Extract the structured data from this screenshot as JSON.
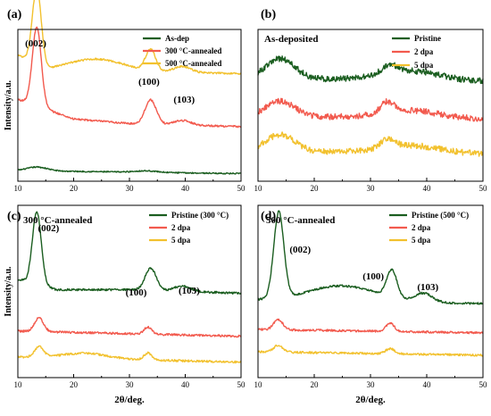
{
  "colors": {
    "green": "#1b5e20",
    "red": "#f25a4e",
    "yellow": "#f2c12e"
  },
  "chart_data": [
    {
      "panel": "(a)",
      "type": "line",
      "annotation": "",
      "xlabel": "",
      "ylabel": "Intensity/a.u.",
      "xlim": [
        10,
        50
      ],
      "xticks": [
        10,
        20,
        30,
        40,
        50
      ],
      "legend_position": "top-right",
      "peak_labels": [
        {
          "text": "(002)",
          "x": 13.2
        },
        {
          "text": "(100)",
          "x": 33.5
        },
        {
          "text": "(103)",
          "x": 39.8
        }
      ],
      "series": [
        {
          "name": "As-dep",
          "color": "#1b5e20",
          "offset": 0.05,
          "noise": 0.004,
          "baseline": [
            [
              10,
              0.02
            ],
            [
              50,
              0.0
            ]
          ],
          "peaks": [
            [
              13.5,
              0.025,
              1.8
            ],
            [
              33,
              0.01,
              2
            ]
          ]
        },
        {
          "name": "300 °C-annealed",
          "color": "#f25a4e",
          "offset": 0.36,
          "noise": 0.006,
          "baseline": [
            [
              10,
              0.18
            ],
            [
              20,
              0.05
            ],
            [
              30,
              0.02
            ],
            [
              50,
              0.0
            ]
          ],
          "peaks": [
            [
              13.4,
              0.52,
              0.8
            ],
            [
              33.8,
              0.16,
              1.0
            ],
            [
              39.5,
              0.03,
              1.5
            ]
          ]
        },
        {
          "name": "500 °C-annealed",
          "color": "#f2c12e",
          "offset": 0.71,
          "noise": 0.006,
          "baseline": [
            [
              10,
              0.12
            ],
            [
              15,
              0.02
            ],
            [
              50,
              0.0
            ]
          ],
          "peaks": [
            [
              13.4,
              0.5,
              0.8
            ],
            [
              24,
              0.08,
              5
            ],
            [
              33.8,
              0.14,
              0.9
            ],
            [
              39.5,
              0.04,
              1.5
            ]
          ]
        }
      ]
    },
    {
      "panel": "(b)",
      "type": "line",
      "annotation": "As-deposited",
      "xlabel": "",
      "ylabel": "",
      "xlim": [
        10,
        50
      ],
      "xticks": [
        10,
        20,
        30,
        40,
        50
      ],
      "legend_position": "top-right",
      "peak_labels": [],
      "series": [
        {
          "name": "Pristine",
          "color": "#1b5e20",
          "offset": 0.66,
          "noise": 0.02,
          "baseline": [
            [
              10,
              0.02
            ],
            [
              50,
              0.0
            ]
          ],
          "peaks": [
            [
              14,
              0.13,
              2.5
            ],
            [
              33.5,
              0.05,
              1.5
            ],
            [
              37,
              0.06,
              5
            ]
          ]
        },
        {
          "name": "2 dpa",
          "color": "#f25a4e",
          "offset": 0.41,
          "noise": 0.02,
          "baseline": [
            [
              10,
              0.02
            ],
            [
              50,
              0.0
            ]
          ],
          "peaks": [
            [
              14,
              0.1,
              2.5
            ],
            [
              33,
              0.07,
              1.2
            ],
            [
              37,
              0.05,
              5
            ]
          ]
        },
        {
          "name": "5 dpa",
          "color": "#f2c12e",
          "offset": 0.18,
          "noise": 0.02,
          "baseline": [
            [
              10,
              0.02
            ],
            [
              50,
              0.0
            ]
          ],
          "peaks": [
            [
              14,
              0.11,
              2.5
            ],
            [
              33,
              0.06,
              1.2
            ],
            [
              37,
              0.05,
              5
            ]
          ]
        }
      ]
    },
    {
      "panel": "(c)",
      "type": "line",
      "annotation": "300 °C-annealed",
      "xlabel": "2θ/deg.",
      "ylabel": "Intensity/a.u.",
      "xlim": [
        10,
        50
      ],
      "xticks": [
        10,
        20,
        30,
        40,
        50
      ],
      "legend_position": "top-right",
      "peak_labels": [
        {
          "text": "(002)",
          "x": 15.5
        },
        {
          "text": "(100)",
          "x": 31.2
        },
        {
          "text": "(103)",
          "x": 40.7
        }
      ],
      "series": [
        {
          "name": "Pristine (300 °C)",
          "color": "#1b5e20",
          "offset": 0.49,
          "noise": 0.006,
          "baseline": [
            [
              10,
              0.08
            ],
            [
              17,
              0.02
            ],
            [
              30,
              0.02
            ],
            [
              50,
              0.0
            ]
          ],
          "peaks": [
            [
              13.4,
              0.42,
              0.8
            ],
            [
              33.8,
              0.13,
              1.0
            ],
            [
              39.5,
              0.03,
              1.5
            ]
          ]
        },
        {
          "name": "2 dpa",
          "color": "#f25a4e",
          "offset": 0.24,
          "noise": 0.006,
          "baseline": [
            [
              10,
              0.03
            ],
            [
              50,
              0.0
            ]
          ],
          "peaks": [
            [
              13.8,
              0.08,
              0.8
            ],
            [
              33.3,
              0.04,
              0.7
            ]
          ]
        },
        {
          "name": "5 dpa",
          "color": "#f2c12e",
          "offset": 0.09,
          "noise": 0.006,
          "baseline": [
            [
              10,
              0.03
            ],
            [
              50,
              0.0
            ]
          ],
          "peaks": [
            [
              13.8,
              0.06,
              0.8
            ],
            [
              22,
              0.03,
              4
            ],
            [
              33.3,
              0.04,
              0.7
            ]
          ]
        }
      ]
    },
    {
      "panel": "(d)",
      "type": "line",
      "annotation": "500 °C-annealed",
      "xlabel": "2θ/deg.",
      "ylabel": "",
      "xlim": [
        10,
        50
      ],
      "xticks": [
        10,
        20,
        30,
        40,
        50
      ],
      "legend_position": "top-right",
      "peak_labels": [
        {
          "text": "(002)",
          "x": 17.5
        },
        {
          "text": "(100)",
          "x": 30.5
        },
        {
          "text": "(103)",
          "x": 40.2
        }
      ],
      "series": [
        {
          "name": "Pristine (500 °C)",
          "color": "#1b5e20",
          "offset": 0.43,
          "noise": 0.006,
          "baseline": [
            [
              10,
              0.02
            ],
            [
              50,
              0.0
            ]
          ],
          "peaks": [
            [
              13.7,
              0.5,
              0.9
            ],
            [
              25,
              0.09,
              6
            ],
            [
              33.8,
              0.16,
              0.9
            ],
            [
              39.5,
              0.05,
              1.5
            ]
          ]
        },
        {
          "name": "2 dpa",
          "color": "#f25a4e",
          "offset": 0.26,
          "noise": 0.006,
          "baseline": [
            [
              10,
              0.02
            ],
            [
              50,
              0.0
            ]
          ],
          "peaks": [
            [
              13.6,
              0.06,
              0.8
            ],
            [
              33.5,
              0.05,
              0.7
            ]
          ]
        },
        {
          "name": "5 dpa",
          "color": "#f2c12e",
          "offset": 0.13,
          "noise": 0.006,
          "baseline": [
            [
              10,
              0.02
            ],
            [
              50,
              0.0
            ]
          ],
          "peaks": [
            [
              13.6,
              0.04,
              0.8
            ],
            [
              33.5,
              0.03,
              0.8
            ]
          ]
        }
      ]
    }
  ]
}
